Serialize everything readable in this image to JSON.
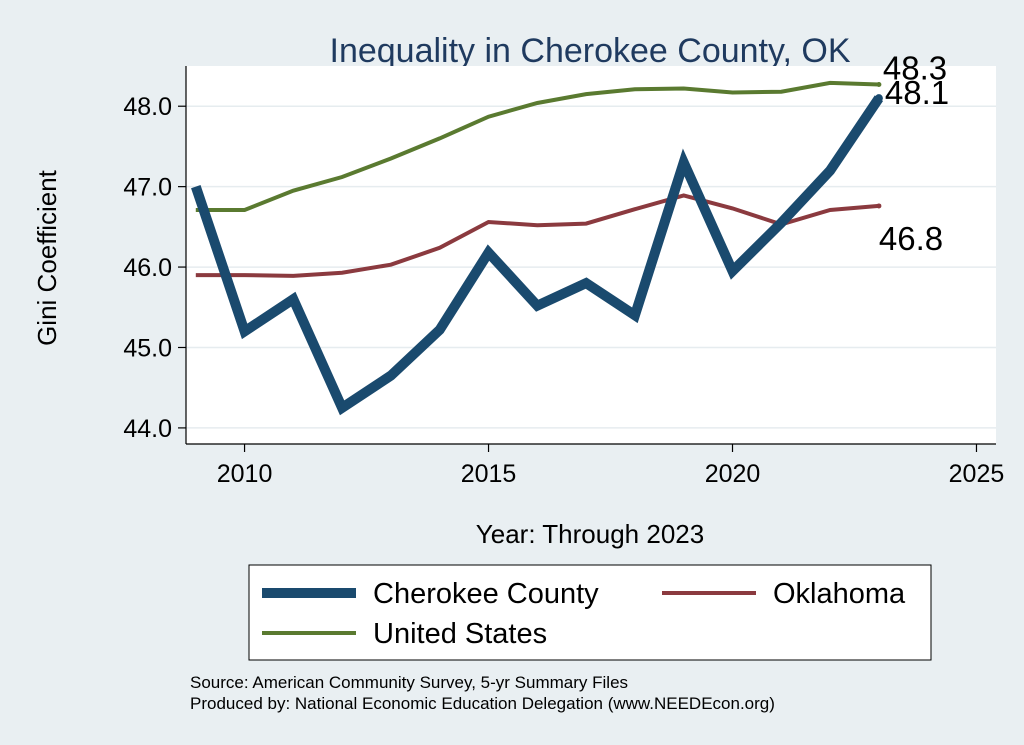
{
  "chart_data": {
    "type": "line",
    "title": "Inequality in Cherokee County, OK",
    "xlabel": "Year: Through 2023",
    "ylabel": "Gini Coefficient",
    "xlim": [
      2008.8,
      2025.4
    ],
    "ylim": [
      43.8,
      48.5
    ],
    "xticks": [
      2010,
      2015,
      2020,
      2025
    ],
    "yticks": [
      44.0,
      45.0,
      46.0,
      47.0,
      48.0
    ],
    "ytick_labels": [
      "44.0",
      "45.0",
      "46.0",
      "47.0",
      "48.0"
    ],
    "x": [
      2009,
      2010,
      2011,
      2012,
      2013,
      2014,
      2015,
      2016,
      2017,
      2018,
      2019,
      2020,
      2021,
      2022,
      2023
    ],
    "series": [
      {
        "name": "Cherokee County",
        "color": "#1a4a6e",
        "values": [
          47.0,
          45.2,
          45.6,
          44.25,
          44.65,
          45.22,
          46.18,
          45.52,
          45.8,
          45.4,
          47.3,
          45.95,
          46.55,
          47.2,
          48.1
        ],
        "end_label": "48.1"
      },
      {
        "name": "Oklahoma",
        "color": "#8b3a3f",
        "values": [
          45.9,
          45.9,
          45.89,
          45.93,
          46.03,
          46.24,
          46.56,
          46.52,
          46.54,
          46.72,
          46.89,
          46.73,
          46.53,
          46.71,
          46.76
        ],
        "end_label": "46.8"
      },
      {
        "name": "United States",
        "color": "#5a7a30",
        "values": [
          46.71,
          46.71,
          46.95,
          47.12,
          47.35,
          47.6,
          47.87,
          48.04,
          48.15,
          48.21,
          48.22,
          48.17,
          48.18,
          48.29,
          48.27
        ],
        "end_label": "48.3"
      }
    ],
    "legend_order": [
      "Cherokee County",
      "Oklahoma",
      "United States"
    ],
    "legend_position": "bottom"
  },
  "source_note": "Source: American Community Survey, 5-yr Summary Files",
  "produced_note": "Produced by: National Economic Education Delegation (www.NEEDEcon.org)"
}
